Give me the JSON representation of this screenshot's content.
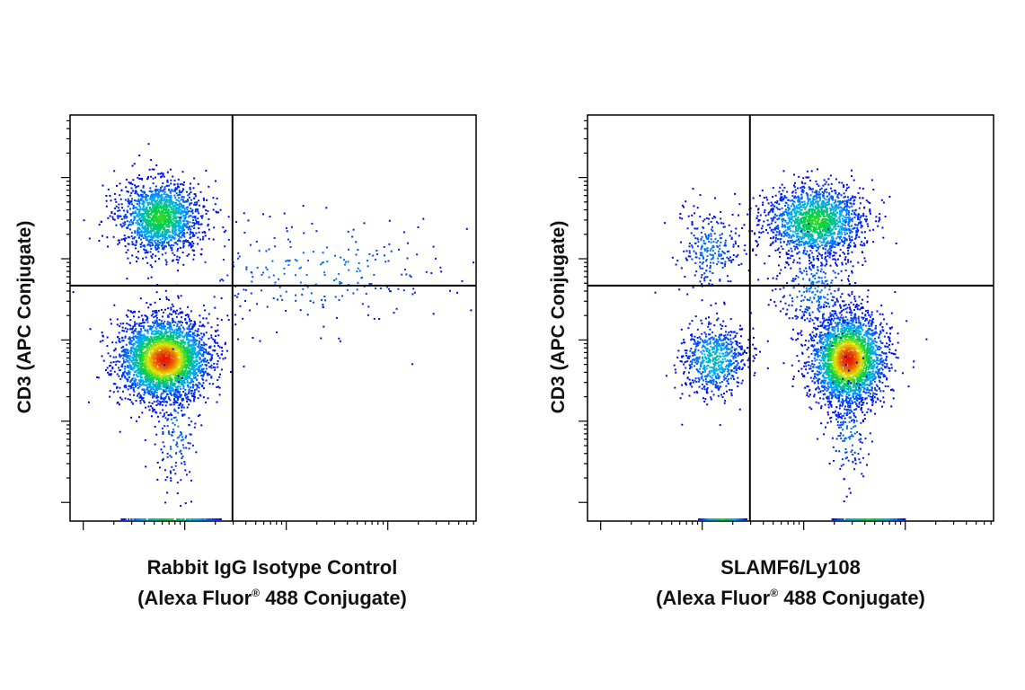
{
  "chart_data": [
    {
      "type": "scatter",
      "plot_style": "flow-cytometry density dot plot",
      "title": "",
      "xlabel_line1": "Rabbit IgG Isotype Control",
      "xlabel_line2_prefix": "(Alexa Fluor",
      "xlabel_line2_mark": "®",
      "xlabel_line2_suffix": " 488 Conjugate)",
      "ylabel": "CD3 (APC Conjugate)",
      "xscale": "log",
      "yscale": "log",
      "tick_labels": "none",
      "quadrant_gate": {
        "x": 0.4,
        "y": 0.42
      },
      "populations": [
        {
          "center": [
            0.22,
            0.25
          ],
          "spread": [
            0.05,
            0.045
          ],
          "events": 1600,
          "peak": "green"
        },
        {
          "center": [
            0.23,
            0.6
          ],
          "spread": [
            0.055,
            0.05
          ],
          "events": 3200,
          "peak": "red"
        },
        {
          "center": [
            0.6,
            0.38
          ],
          "spread": [
            0.2,
            0.07
          ],
          "events": 260,
          "peak": "blue"
        },
        {
          "center": [
            0.26,
            0.78
          ],
          "spread": [
            0.025,
            0.07
          ],
          "events": 160,
          "peak": "blue"
        }
      ],
      "axis_edge_events": {
        "x_range": [
          0.12,
          0.37
        ],
        "y": 1.0
      }
    },
    {
      "type": "scatter",
      "plot_style": "flow-cytometry density dot plot",
      "title": "",
      "xlabel_line1": "SLAMF6/Ly108",
      "xlabel_line2_prefix": "(Alexa Fluor",
      "xlabel_line2_mark": "®",
      "xlabel_line2_suffix": " 488 Conjugate)",
      "ylabel": "CD3 (APC Conjugate)",
      "xscale": "log",
      "yscale": "log",
      "tick_labels": "none",
      "quadrant_gate": {
        "x": 0.4,
        "y": 0.42
      },
      "populations": [
        {
          "center": [
            0.56,
            0.26
          ],
          "spread": [
            0.06,
            0.045
          ],
          "events": 1700,
          "peak": "green"
        },
        {
          "center": [
            0.3,
            0.33
          ],
          "spread": [
            0.04,
            0.05
          ],
          "events": 260,
          "peak": "blue"
        },
        {
          "center": [
            0.31,
            0.6
          ],
          "spread": [
            0.04,
            0.045
          ],
          "events": 700,
          "peak": "cyan"
        },
        {
          "center": [
            0.64,
            0.6
          ],
          "spread": [
            0.045,
            0.055
          ],
          "events": 2800,
          "peak": "red"
        },
        {
          "center": [
            0.56,
            0.43
          ],
          "spread": [
            0.05,
            0.06
          ],
          "events": 300,
          "peak": "blue"
        },
        {
          "center": [
            0.64,
            0.77
          ],
          "spread": [
            0.025,
            0.07
          ],
          "events": 160,
          "peak": "blue"
        }
      ],
      "axis_edge_events": {
        "x_range": [
          0.27,
          0.39
        ],
        "x_range2": [
          0.6,
          0.78
        ],
        "y": 1.0
      }
    }
  ]
}
